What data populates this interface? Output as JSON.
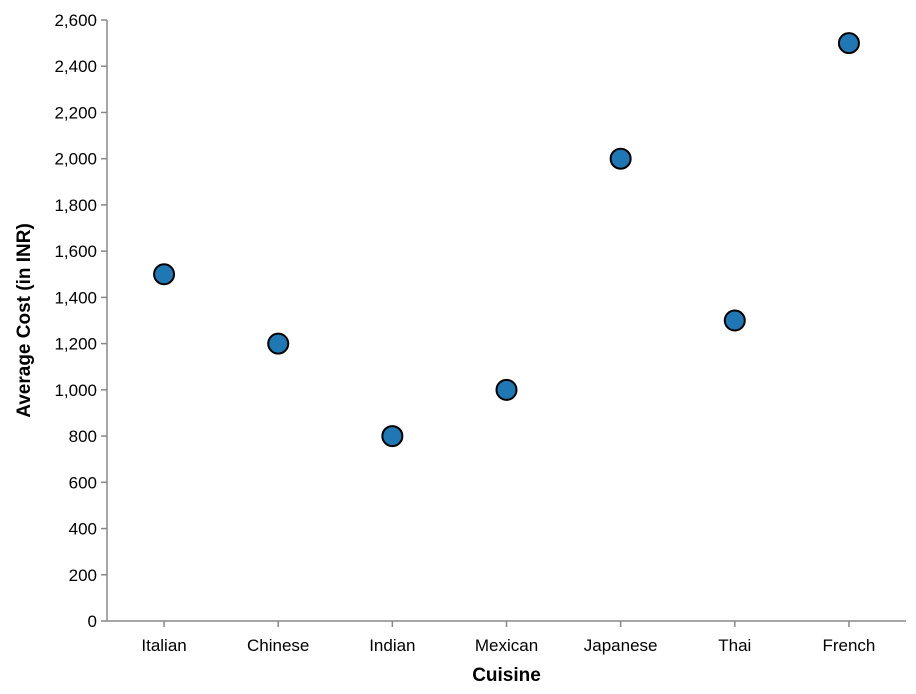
{
  "chart_data": {
    "type": "scatter",
    "xlabel": "Cuisine",
    "ylabel": "Average Cost (in INR)",
    "categories": [
      "Italian",
      "Chinese",
      "Indian",
      "Mexican",
      "Japanese",
      "Thai",
      "French"
    ],
    "values": [
      1500,
      1200,
      800,
      1000,
      2000,
      1300,
      2500
    ],
    "ylim": [
      0,
      2600
    ],
    "yticks": [
      0,
      200,
      400,
      600,
      800,
      1000,
      1200,
      1400,
      1600,
      1800,
      2000,
      2200,
      2400,
      2600
    ],
    "ytick_labels": [
      "0",
      "200",
      "400",
      "600",
      "800",
      "1,000",
      "1,200",
      "1,400",
      "1,600",
      "1,800",
      "2,000",
      "2,200",
      "2,400",
      "2,600"
    ],
    "grid": false,
    "point_color": "#1f77b4"
  }
}
